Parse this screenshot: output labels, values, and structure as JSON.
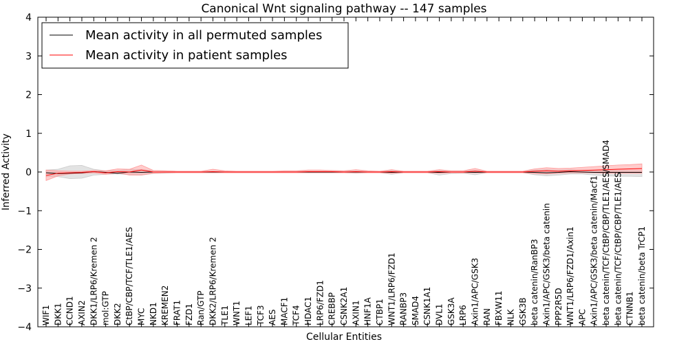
{
  "chart_data": {
    "type": "line",
    "title": "Canonical Wnt signaling pathway -- 147 samples",
    "xlabel": "Cellular Entities",
    "ylabel": "Inferred Activity",
    "ylim": [
      -4,
      4
    ],
    "yticks": [
      4,
      3,
      2,
      1,
      0,
      -1,
      -2,
      -3,
      -4
    ],
    "ytick_labels": [
      "4",
      "3",
      "2",
      "1",
      "0",
      "−1",
      "−2",
      "−3",
      "−4"
    ],
    "grid": false,
    "legend_position": "top-left",
    "categories": [
      "WIF1",
      "DKK1",
      "CCND1",
      "AXIN2",
      "DKK1/LRP6/Kremen 2",
      "mol:GTP",
      "DKK2",
      "CtBP/CBP/TCF/TLE1/AES",
      "MYC",
      "NKD1",
      "KREMEN2",
      "FRAT1",
      "FZD1",
      "Ran/GTP",
      "DKK2/LRP6/Kremen 2",
      "TLE1",
      "WNT1",
      "LEF1",
      "TCF3",
      "AES",
      "MACF1",
      "TCF4",
      "HDAC1",
      "LRP6/FZD1",
      "CREBBP",
      "CSNK2A1",
      "AXIN1",
      "HNF1A",
      "CTBP1",
      "WNT1/LRP6/FZD1",
      "RANBP3",
      "SMAD4",
      "CSNK1A1",
      "DVL1",
      "GSK3A",
      "LRP6",
      "Axin1/APC/GSK3",
      "RAN",
      "FBXW11",
      "NLK",
      "GSK3B",
      "beta catenin/RanBP3",
      "Axin1/APC/GSK3/beta catenin",
      "PPP2R5D",
      "WNT1/LRP6/FZD1/Axin1",
      "APC",
      "Axin1/APC/GSK3/beta catenin/Macf1",
      "beta catenin/TCF/CtBP/CBP/TLE1/AES/SMAD4",
      "beta catenin/TCF/CtBP/CBP/TLE1/AES",
      "CTNNB1",
      "beta catenin/beta TrCP1"
    ],
    "series": [
      {
        "name": "Mean activity in all permuted samples",
        "color": "#000000",
        "band_color": "#cccccc",
        "values": [
          -0.02,
          -0.04,
          -0.03,
          -0.02,
          0.01,
          -0.01,
          -0.03,
          0.0,
          -0.01,
          0.0,
          0.0,
          0.0,
          0.0,
          0.0,
          0.0,
          0.0,
          0.0,
          0.0,
          0.0,
          0.0,
          0.0,
          0.0,
          0.0,
          0.0,
          0.0,
          0.0,
          0.0,
          0.0,
          0.0,
          -0.01,
          0.0,
          0.0,
          0.0,
          -0.01,
          0.0,
          0.0,
          -0.01,
          0.0,
          0.0,
          0.0,
          0.0,
          -0.01,
          -0.02,
          -0.01,
          0.01,
          0.0,
          -0.01,
          -0.01,
          -0.01,
          -0.01,
          -0.01
        ],
        "lower": [
          -0.12,
          -0.12,
          -0.17,
          -0.16,
          -0.08,
          -0.06,
          -0.05,
          -0.07,
          -0.08,
          -0.04,
          -0.03,
          -0.02,
          -0.02,
          -0.02,
          -0.02,
          -0.02,
          -0.02,
          -0.02,
          -0.02,
          -0.02,
          -0.02,
          -0.02,
          -0.02,
          -0.02,
          -0.02,
          -0.02,
          -0.03,
          -0.02,
          -0.02,
          -0.06,
          -0.02,
          -0.02,
          -0.02,
          -0.08,
          -0.04,
          -0.03,
          -0.07,
          -0.02,
          -0.02,
          -0.02,
          -0.02,
          -0.07,
          -0.1,
          -0.08,
          -0.05,
          -0.05,
          -0.08,
          -0.1,
          -0.11,
          -0.11,
          -0.12
        ],
        "upper": [
          0.05,
          0.07,
          0.16,
          0.17,
          0.07,
          0.03,
          0.04,
          0.07,
          0.06,
          0.04,
          0.03,
          0.02,
          0.02,
          0.02,
          0.02,
          0.02,
          0.02,
          0.02,
          0.02,
          0.02,
          0.02,
          0.02,
          0.02,
          0.02,
          0.02,
          0.02,
          0.03,
          0.02,
          0.02,
          0.04,
          0.02,
          0.02,
          0.02,
          0.04,
          0.03,
          0.03,
          0.04,
          0.02,
          0.02,
          0.02,
          0.02,
          0.05,
          0.06,
          0.05,
          0.06,
          0.03,
          0.03,
          0.03,
          0.03,
          0.03,
          0.03
        ]
      },
      {
        "name": "Mean activity in patient samples",
        "color": "#ff0000",
        "band_color": "#ff9999",
        "values": [
          -0.09,
          -0.03,
          -0.02,
          -0.01,
          0.01,
          -0.02,
          0.01,
          0.0,
          0.05,
          0.0,
          0.0,
          0.0,
          0.0,
          0.0,
          0.01,
          0.0,
          0.0,
          0.0,
          0.0,
          0.0,
          0.0,
          0.0,
          0.01,
          0.01,
          0.01,
          0.0,
          0.01,
          0.0,
          0.0,
          0.01,
          0.0,
          0.0,
          0.0,
          0.01,
          0.0,
          0.0,
          0.02,
          0.0,
          0.0,
          0.0,
          0.0,
          0.02,
          0.03,
          0.02,
          0.03,
          0.04,
          0.05,
          0.06,
          0.07,
          0.08,
          0.09
        ],
        "lower": [
          -0.22,
          -0.1,
          -0.05,
          -0.04,
          -0.02,
          -0.06,
          -0.02,
          -0.08,
          -0.08,
          -0.03,
          -0.02,
          -0.02,
          -0.02,
          -0.02,
          -0.02,
          -0.02,
          -0.02,
          -0.02,
          -0.02,
          -0.02,
          -0.02,
          -0.02,
          -0.02,
          -0.02,
          -0.02,
          -0.02,
          -0.02,
          -0.02,
          -0.02,
          -0.03,
          -0.02,
          -0.02,
          -0.02,
          -0.03,
          -0.02,
          -0.02,
          -0.02,
          -0.02,
          -0.02,
          -0.02,
          -0.02,
          -0.04,
          -0.05,
          -0.03,
          -0.02,
          -0.02,
          -0.02,
          -0.03,
          -0.03,
          -0.03,
          -0.03
        ],
        "upper": [
          0.05,
          0.03,
          0.02,
          0.02,
          0.04,
          0.03,
          0.08,
          0.07,
          0.18,
          0.04,
          0.03,
          0.02,
          0.02,
          0.02,
          0.07,
          0.03,
          0.02,
          0.02,
          0.02,
          0.02,
          0.03,
          0.03,
          0.05,
          0.05,
          0.04,
          0.03,
          0.06,
          0.03,
          0.02,
          0.06,
          0.02,
          0.02,
          0.02,
          0.06,
          0.03,
          0.03,
          0.09,
          0.02,
          0.02,
          0.02,
          0.02,
          0.08,
          0.11,
          0.09,
          0.1,
          0.12,
          0.14,
          0.16,
          0.18,
          0.19,
          0.21
        ]
      }
    ]
  }
}
